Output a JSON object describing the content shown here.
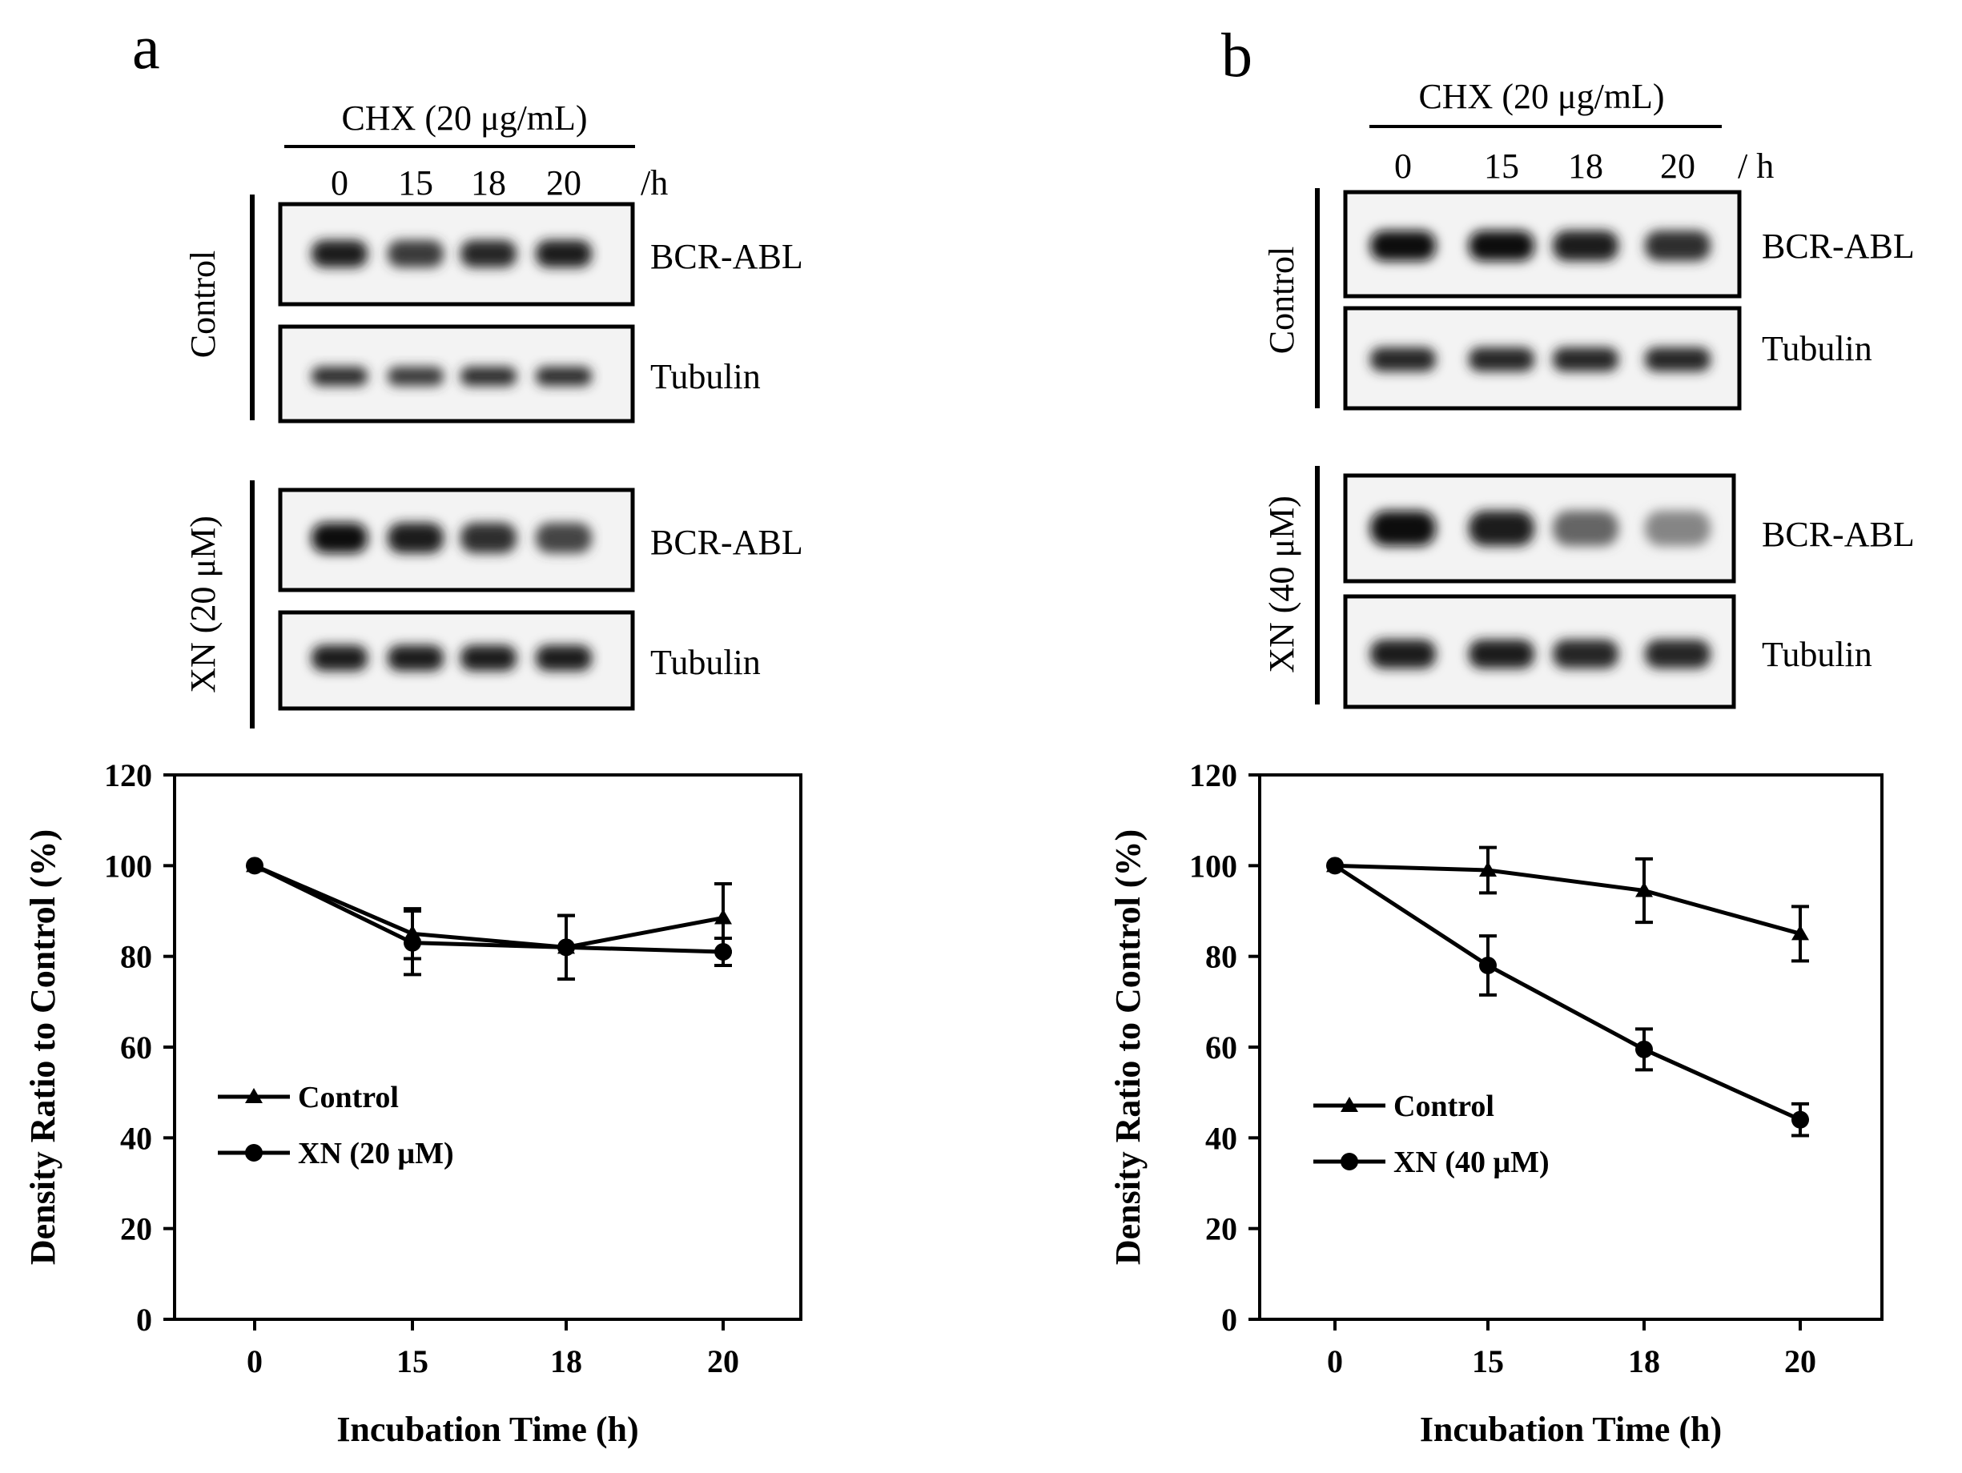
{
  "panels": [
    {
      "letter": "a",
      "treatment_header": "CHX (20 μg/mL)",
      "time_unit": "/h",
      "lanes": [
        "0",
        "15",
        "18",
        "20"
      ],
      "blots": [
        {
          "group_label": "Control",
          "rows": [
            {
              "protein": "BCR-ABL",
              "band_intensity": [
                0.95,
                0.8,
                0.9,
                0.95
              ]
            },
            {
              "protein": "Tubulin",
              "band_intensity": [
                0.85,
                0.8,
                0.85,
                0.85
              ]
            }
          ]
        },
        {
          "group_label": "XN (20 μM)",
          "rows": [
            {
              "protein": "BCR-ABL",
              "band_intensity": [
                1.0,
                0.95,
                0.85,
                0.75
              ]
            },
            {
              "protein": "Tubulin",
              "band_intensity": [
                0.95,
                0.95,
                0.95,
                0.95
              ]
            }
          ]
        }
      ]
    },
    {
      "letter": "b",
      "treatment_header": "CHX (20 μg/mL)",
      "time_unit": "/ h",
      "lanes": [
        "0",
        "15",
        "18",
        "20"
      ],
      "blots": [
        {
          "group_label": "Control",
          "rows": [
            {
              "protein": "BCR-ABL",
              "band_intensity": [
                1.0,
                1.0,
                0.95,
                0.85
              ]
            },
            {
              "protein": "Tubulin",
              "band_intensity": [
                0.9,
                0.9,
                0.9,
                0.9
              ]
            }
          ]
        },
        {
          "group_label": "XN (40 μM)",
          "rows": [
            {
              "protein": "BCR-ABL",
              "band_intensity": [
                1.0,
                0.95,
                0.6,
                0.45
              ]
            },
            {
              "protein": "Tubulin",
              "band_intensity": [
                0.95,
                0.95,
                0.9,
                0.9
              ]
            }
          ]
        }
      ]
    }
  ],
  "chart_data": [
    {
      "type": "line",
      "panel": "a",
      "title": "",
      "xlabel": "Incubation Time (h)",
      "ylabel": "Density Ratio to Control  (%)",
      "categories": [
        "0",
        "15",
        "18",
        "20"
      ],
      "ylim": [
        0,
        120
      ],
      "yticks": [
        0,
        20,
        40,
        60,
        80,
        100,
        120
      ],
      "grid": false,
      "legend_position": "lower-left",
      "series": [
        {
          "name": "Control",
          "marker": "triangle",
          "values": [
            100,
            85,
            82,
            88.5
          ],
          "errors": [
            0,
            5.5,
            7,
            7.5
          ]
        },
        {
          "name": "XN (20 μM)",
          "marker": "circle",
          "values": [
            100,
            83,
            82,
            81
          ],
          "errors": [
            0,
            7,
            7,
            3
          ]
        }
      ]
    },
    {
      "type": "line",
      "panel": "b",
      "title": "",
      "xlabel": "Incubation Time (h)",
      "ylabel": "Density Ratio to Control  (%)",
      "categories": [
        "0",
        "15",
        "18",
        "20"
      ],
      "ylim": [
        0,
        120
      ],
      "yticks": [
        0,
        20,
        40,
        60,
        80,
        100,
        120
      ],
      "grid": false,
      "legend_position": "lower-left",
      "series": [
        {
          "name": "Control",
          "marker": "triangle",
          "values": [
            100,
            99,
            94.5,
            85
          ],
          "errors": [
            0,
            5,
            7,
            6
          ]
        },
        {
          "name": "XN (40 μM)",
          "marker": "circle",
          "values": [
            100,
            78,
            59.5,
            44
          ],
          "errors": [
            0,
            6.5,
            4.5,
            3.5
          ]
        }
      ]
    }
  ]
}
